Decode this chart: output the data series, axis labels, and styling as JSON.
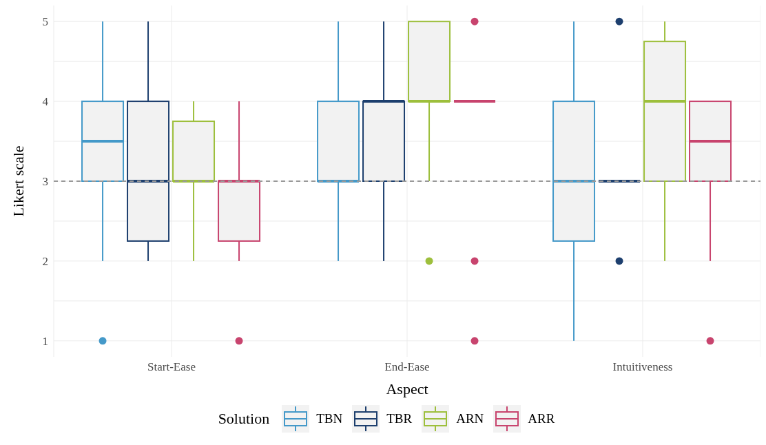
{
  "chart_data": {
    "type": "box",
    "xlabel": "Aspect",
    "ylabel": "Likert scale",
    "legend_title": "Solution",
    "legend": "bottom",
    "grid": true,
    "categories": [
      "Start-Ease",
      "End-Ease",
      "Intuitiveness"
    ],
    "ylim": [
      0.8,
      5.2
    ],
    "yticks": [
      1,
      2,
      3,
      4,
      5
    ],
    "ref_lines": [
      {
        "axis": "y",
        "value": 3,
        "color": "#999999",
        "line_style": "dashed"
      }
    ],
    "series": [
      {
        "name": "TBN",
        "color": "#4499c9",
        "boxes": [
          {
            "low": 2,
            "q1": 3,
            "median": 3.5,
            "q3": 4,
            "high": 5,
            "outliers": [
              1
            ]
          },
          {
            "low": 2,
            "q1": 3,
            "median": 3,
            "q3": 4,
            "high": 5
          },
          {
            "low": 1,
            "q1": 2.25,
            "median": 3,
            "q3": 4,
            "high": 5
          }
        ]
      },
      {
        "name": "TBR",
        "color": "#1d3f6e",
        "boxes": [
          {
            "low": 2,
            "q1": 2.25,
            "median": 3,
            "q3": 4,
            "high": 5
          },
          {
            "low": 2,
            "q1": 3,
            "median": 4,
            "q3": 4,
            "high": 5
          },
          {
            "low": 3,
            "q1": 3,
            "median": 3,
            "q3": 3,
            "high": 3,
            "outliers": [
              5,
              2
            ]
          }
        ]
      },
      {
        "name": "ARN",
        "color": "#9dbf3c",
        "boxes": [
          {
            "low": 2,
            "q1": 3,
            "median": 3,
            "q3": 3.75,
            "high": 4
          },
          {
            "low": 3,
            "q1": 4,
            "median": 4,
            "q3": 5,
            "high": 5,
            "outliers": [
              2
            ]
          },
          {
            "low": 2,
            "q1": 3,
            "median": 4,
            "q3": 4.75,
            "high": 5
          }
        ]
      },
      {
        "name": "ARR",
        "color": "#c8446e",
        "boxes": [
          {
            "low": 2,
            "q1": 2.25,
            "median": 3,
            "q3": 3,
            "high": 4,
            "outliers": [
              1
            ]
          },
          {
            "low": 4,
            "q1": 4,
            "median": 4,
            "q3": 4,
            "high": 4,
            "outliers": [
              5,
              2,
              1
            ]
          },
          {
            "low": 2,
            "q1": 3,
            "median": 3.5,
            "q3": 4,
            "high": 4,
            "outliers": [
              1
            ]
          }
        ]
      }
    ]
  }
}
